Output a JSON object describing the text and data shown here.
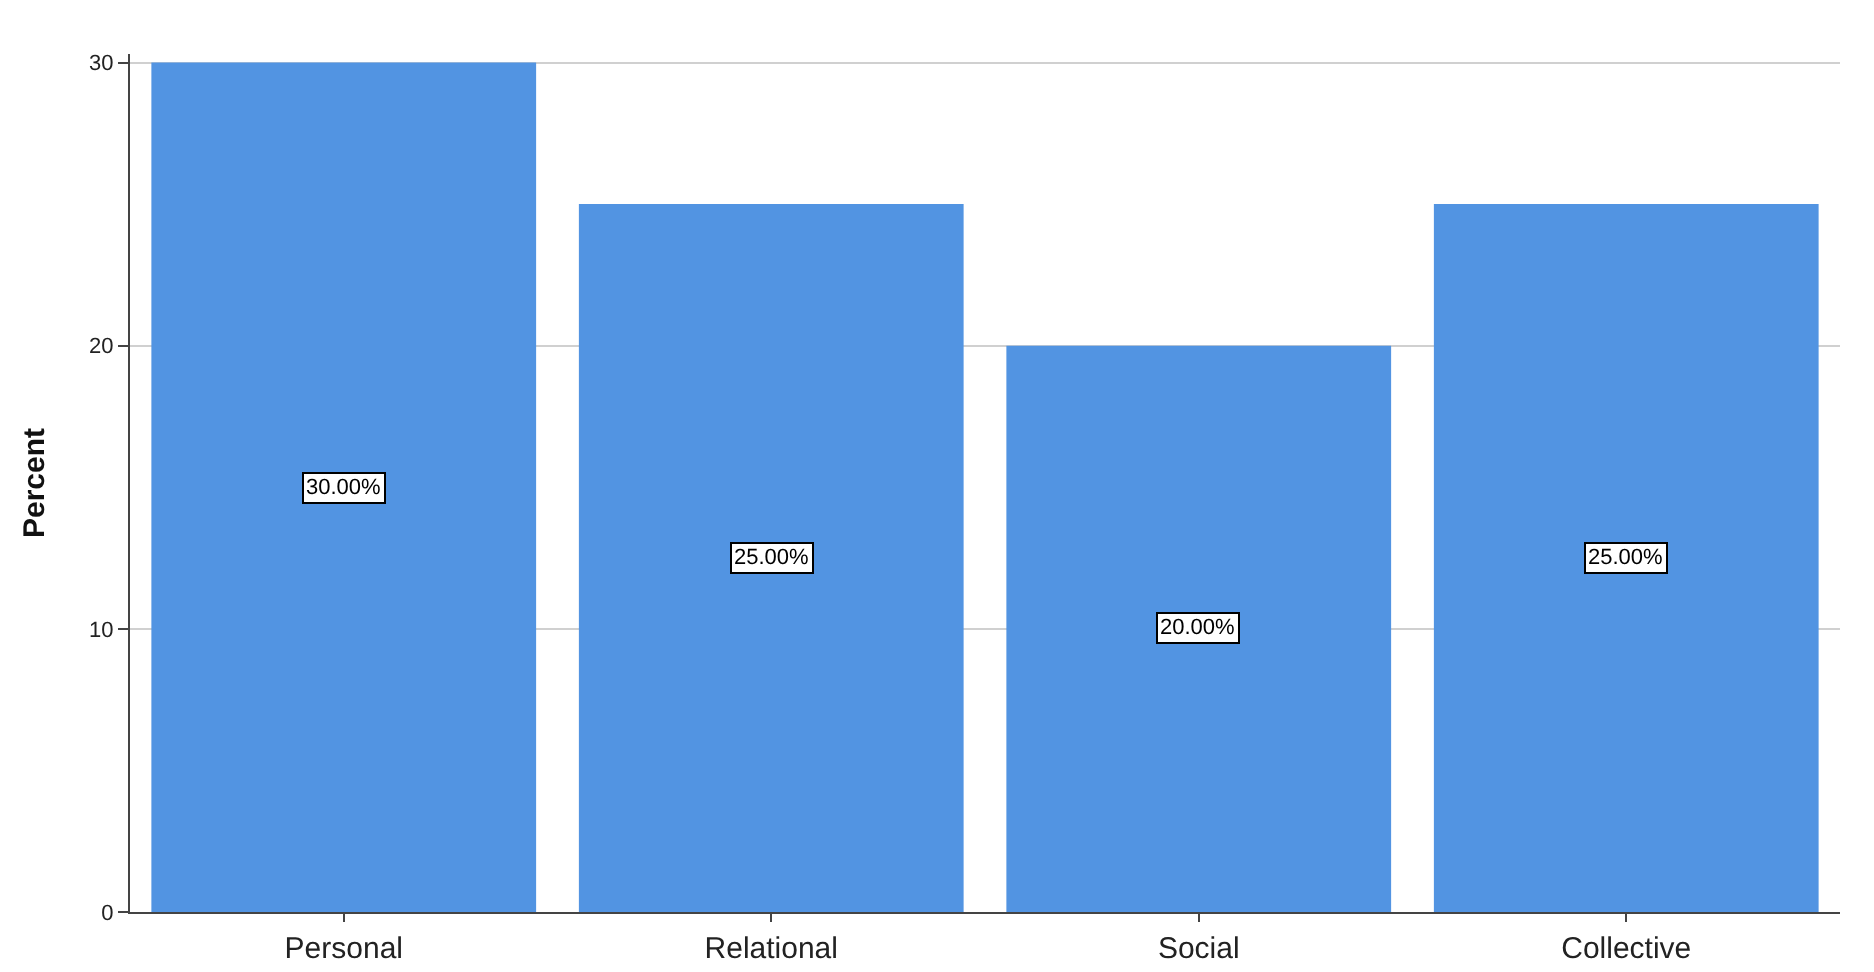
{
  "chart_data": {
    "type": "bar",
    "ylabel": "Percent",
    "categories": [
      "Personal",
      "Relational",
      "Social",
      "Collective"
    ],
    "values": [
      30,
      25,
      20,
      25
    ],
    "color": "#5294e2",
    "value_labels": [
      "30.00%",
      "25.00%",
      "20.00%",
      "25.00%"
    ],
    "ylim": [
      0,
      30.3
    ],
    "yticks": [
      0,
      10,
      20,
      30
    ],
    "grid": "y"
  }
}
